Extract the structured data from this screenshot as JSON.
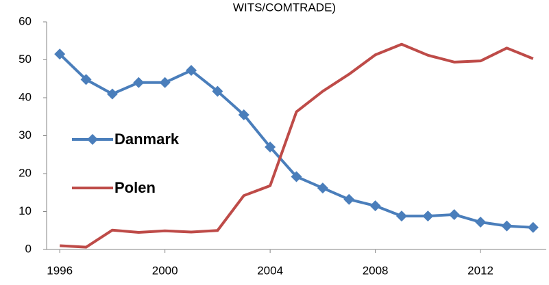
{
  "chart_data": {
    "type": "line",
    "title": "WITS/COMTRADE)",
    "x": [
      1996,
      1997,
      1998,
      1999,
      2000,
      2001,
      2002,
      2003,
      2004,
      2005,
      2006,
      2007,
      2008,
      2009,
      2010,
      2011,
      2012,
      2013,
      2014
    ],
    "series": [
      {
        "name": "Danmark",
        "color": "#4a7ebb",
        "marker": "diamond",
        "values": [
          51.5,
          44.8,
          41,
          44,
          44,
          47.2,
          41.7,
          35.5,
          27,
          19.2,
          16.2,
          13.2,
          11.5,
          8.8,
          8.8,
          9.2,
          7.2,
          6.2,
          5.8
        ]
      },
      {
        "name": "Polen",
        "color": "#be4b48",
        "values": [
          1.0,
          0.6,
          5.1,
          4.5,
          4.9,
          4.6,
          5.0,
          14.2,
          16.8,
          36.3,
          41.7,
          46.2,
          51.3,
          54.1,
          51.2,
          49.4,
          49.7,
          53.1,
          50.3
        ]
      }
    ],
    "xlim": [
      1995.5,
      2014.5
    ],
    "xticks": [
      1996,
      2000,
      2004,
      2008,
      2012
    ],
    "ylim": [
      0,
      60
    ],
    "yticks": [
      0,
      10,
      20,
      30,
      40,
      50,
      60
    ]
  }
}
